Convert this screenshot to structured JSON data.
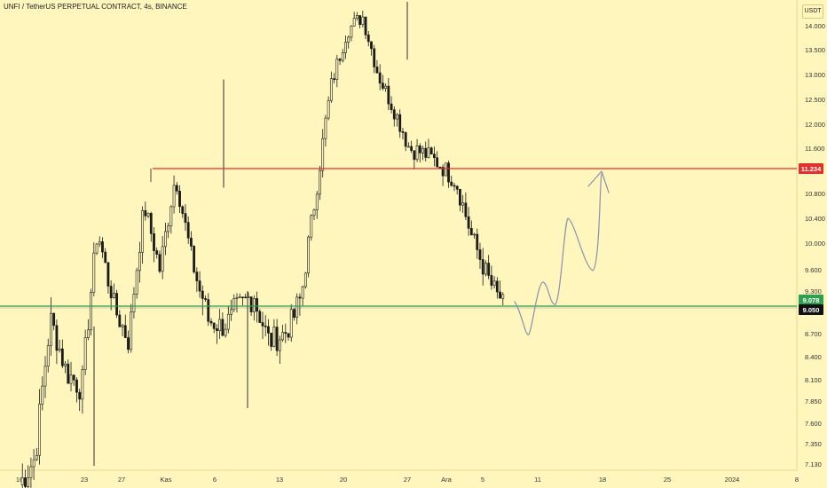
{
  "header": {
    "title": "UNFI / TetherUS PERPETUAL CONTRACT, 4s, BINANCE",
    "unit": "USDT"
  },
  "colors": {
    "background": "#FFF6BD",
    "candle": "#1a1a1a",
    "resistance": "#E0312D",
    "support": "#2E9E4F",
    "forecast": "#8A8FB0",
    "current_price_badge": "#111111"
  },
  "chart_data": {
    "type": "candlestick",
    "title": "UNFI / TetherUS PERPETUAL CONTRACT, 4s, BINANCE",
    "x_tick_labels": [
      "16",
      "23",
      "27",
      "Kas",
      "6",
      "13",
      "20",
      "27",
      "Ara",
      "5",
      "11",
      "18",
      "25",
      "2024",
      "8"
    ],
    "y_tick_labels": [
      "14.000",
      "13.500",
      "13.000",
      "12.500",
      "12.000",
      "11.600",
      "11.234",
      "10.800",
      "10.400",
      "10.000",
      "9.600",
      "9.300",
      "9.078",
      "9.050",
      "8.700",
      "8.400",
      "8.100",
      "7.850",
      "7.600",
      "7.350",
      "7.130"
    ],
    "y_range": [
      7.1,
      14.2
    ],
    "price_series": {
      "dates": [
        "16",
        "23",
        "27",
        "Kas",
        "6",
        "13",
        "20",
        "27",
        "Ara",
        "5"
      ],
      "close_path": [
        6.9,
        7.2,
        8.9,
        8.2,
        8.0,
        10.2,
        9.1,
        8.6,
        10.6,
        9.6,
        11.1,
        9.8,
        8.9,
        8.8,
        9.0,
        9.2,
        8.6,
        8.7,
        9.1,
        10.8,
        12.8,
        13.9,
        14.2,
        13.0,
        12.3,
        11.6,
        11.5,
        11.3,
        11.0,
        10.1,
        9.5,
        9.05
      ]
    },
    "levels": [
      {
        "name": "resistance",
        "value": 11.234,
        "label": "11.234",
        "color": "#E0312D"
      },
      {
        "name": "support",
        "value": 9.078,
        "label": "9.078",
        "color": "#2E9E4F"
      },
      {
        "name": "current",
        "value": 9.05,
        "label": "9.050",
        "color": "#111111"
      }
    ],
    "forecast_path": [
      9.1,
      8.7,
      9.2,
      10.5,
      9.6,
      11.2
    ],
    "grid": false
  }
}
